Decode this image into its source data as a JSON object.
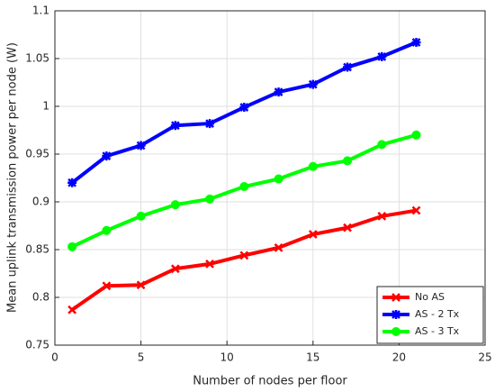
{
  "chart_data": {
    "type": "line",
    "xlabel": "Number of nodes per floor",
    "ylabel": "Mean uplink transmission power per node (W)",
    "x": [
      1,
      3,
      5,
      7,
      9,
      11,
      13,
      15,
      17,
      19,
      21
    ],
    "series": [
      {
        "name": "No AS",
        "color": "#ff0000",
        "marker": "x",
        "values": [
          0.787,
          0.812,
          0.813,
          0.83,
          0.835,
          0.844,
          0.852,
          0.866,
          0.873,
          0.885,
          0.891
        ]
      },
      {
        "name": "AS - 2 Tx",
        "color": "#0000ff",
        "marker": "star",
        "values": [
          0.92,
          0.948,
          0.959,
          0.98,
          0.982,
          0.999,
          1.015,
          1.023,
          1.041,
          1.052,
          1.067
        ]
      },
      {
        "name": "AS - 3 Tx",
        "color": "#00ff00",
        "marker": "circle",
        "values": [
          0.853,
          0.87,
          0.885,
          0.897,
          0.903,
          0.916,
          0.924,
          0.937,
          0.943,
          0.96,
          0.97
        ]
      }
    ],
    "xlim": [
      0,
      25
    ],
    "xticks": [
      0,
      5,
      10,
      15,
      20,
      25
    ],
    "ylim": [
      0.75,
      1.1
    ],
    "yticks": [
      0.75,
      0.8,
      0.85,
      0.9,
      0.95,
      1,
      1.05,
      1.1
    ],
    "grid": true,
    "legend": "lower right"
  }
}
